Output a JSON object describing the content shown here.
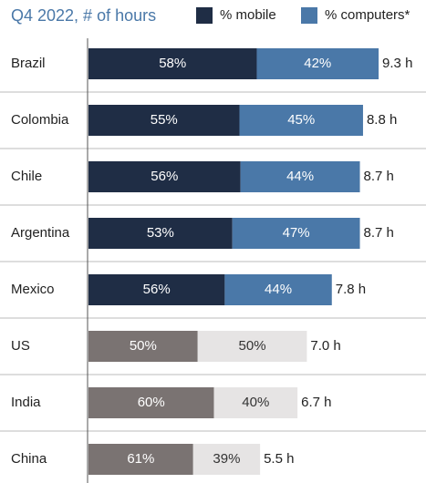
{
  "chart_data": {
    "type": "bar",
    "orientation": "horizontal",
    "stacked": true,
    "title": "Q4 2022, # of hours",
    "categories": [
      "Brazil",
      "Colombia",
      "Chile",
      "Argentina",
      "Mexico",
      "US",
      "India",
      "China"
    ],
    "series": [
      {
        "name": "% mobile",
        "color": "#1f2d45",
        "colors": [
          "#1f2d45",
          "#1f2d45",
          "#1f2d45",
          "#1f2d45",
          "#1f2d45",
          "#7a7372",
          "#7a7372",
          "#7a7372"
        ],
        "label_colors": [
          "#ffffff",
          "#ffffff",
          "#ffffff",
          "#ffffff",
          "#ffffff",
          "#ffffff",
          "#ffffff",
          "#ffffff"
        ],
        "values": [
          58,
          55,
          56,
          53,
          56,
          50,
          60,
          61
        ],
        "value_labels": [
          "58%",
          "55%",
          "56%",
          "53%",
          "56%",
          "50%",
          "60%",
          "61%"
        ]
      },
      {
        "name": "% computers*",
        "color": "#4a78a8",
        "colors": [
          "#4a78a8",
          "#4a78a8",
          "#4a78a8",
          "#4a78a8",
          "#4a78a8",
          "#e6e4e4",
          "#e6e4e4",
          "#e6e4e4"
        ],
        "label_colors": [
          "#ffffff",
          "#ffffff",
          "#ffffff",
          "#ffffff",
          "#ffffff",
          "#333333",
          "#333333",
          "#333333"
        ],
        "values": [
          42,
          45,
          44,
          47,
          44,
          50,
          40,
          39
        ],
        "value_labels": [
          "42%",
          "45%",
          "44%",
          "47%",
          "44%",
          "50%",
          "40%",
          "39%"
        ]
      }
    ],
    "totals": {
      "values": [
        9.3,
        8.8,
        8.7,
        8.7,
        7.8,
        7.0,
        6.7,
        5.5
      ],
      "value_labels": [
        "9.3 h",
        "8.8 h",
        "8.7 h",
        "8.7 h",
        "7.8 h",
        "7.0 h",
        "6.7 h",
        "5.5 h"
      ]
    }
  }
}
